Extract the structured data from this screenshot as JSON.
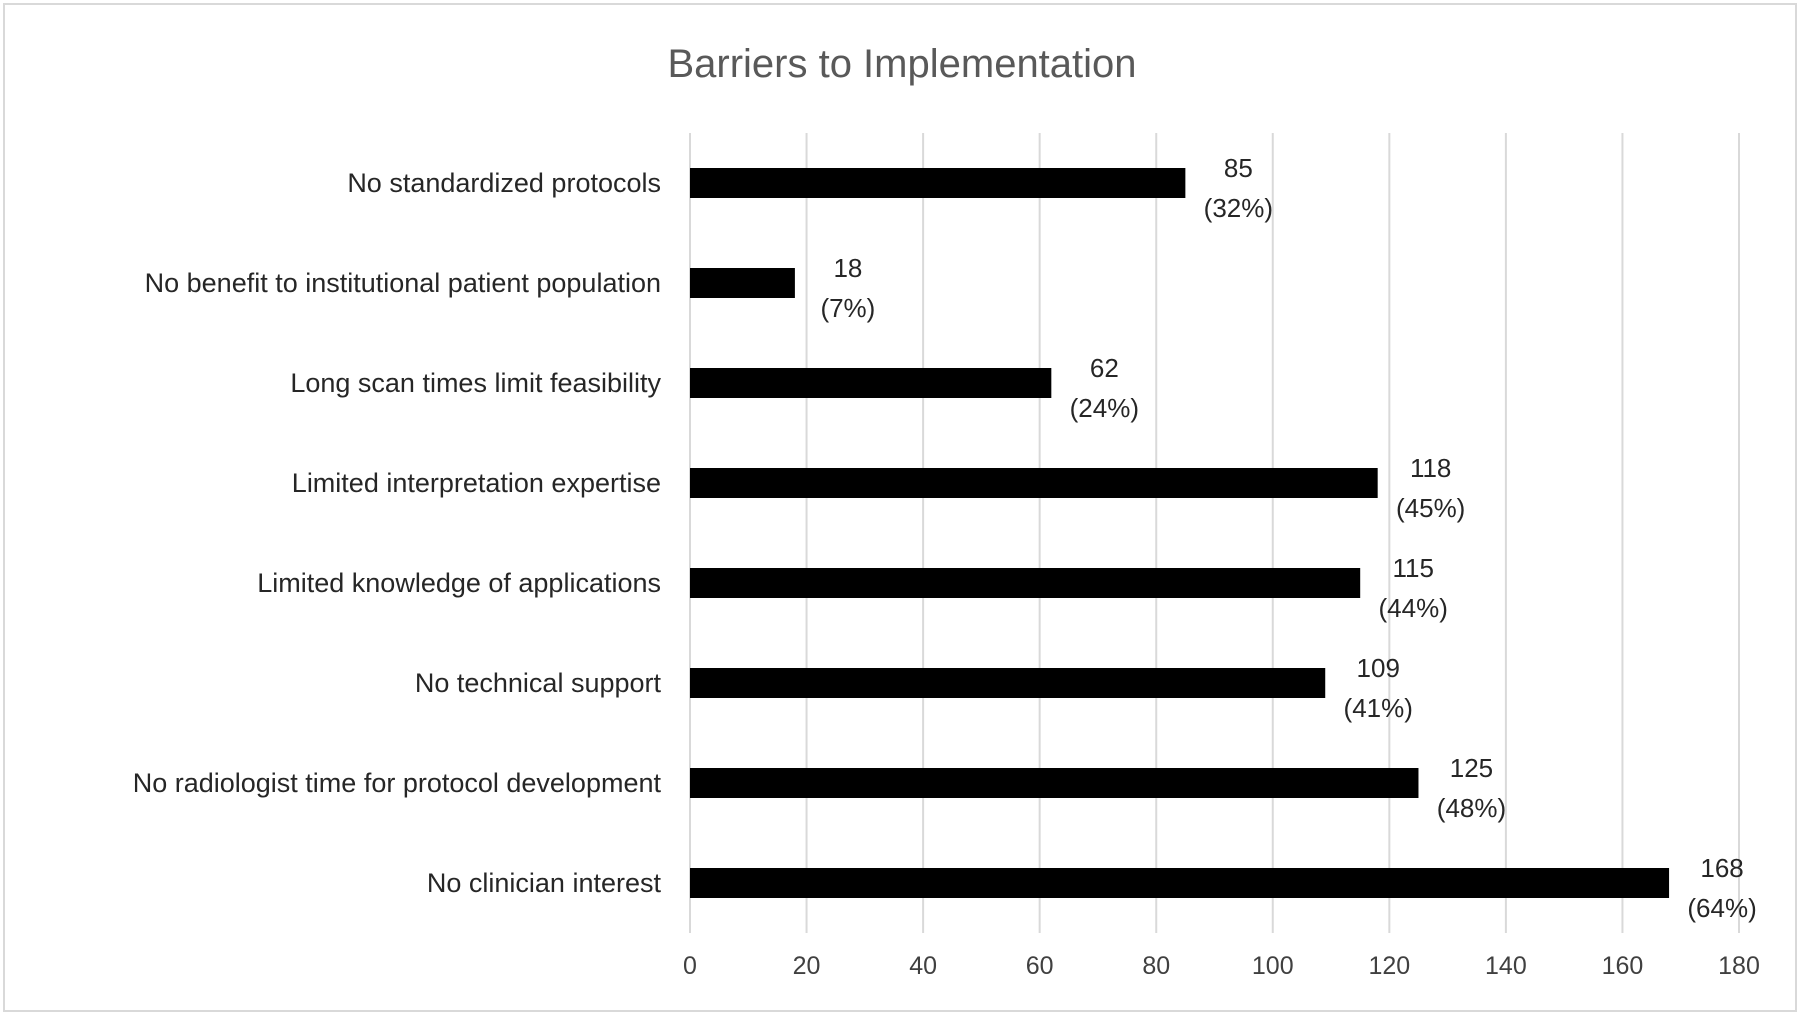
{
  "chart_data": {
    "type": "bar",
    "orientation": "horizontal",
    "title": "Barriers to Implementation",
    "xlabel": "",
    "ylabel": "",
    "categories": [
      "No standardized protocols",
      "No benefit to institutional patient population",
      "Long scan times limit feasibility",
      "Limited interpretation expertise",
      "Limited knowledge of applications",
      "No technical support",
      "No radiologist time for protocol development",
      "No clinician interest"
    ],
    "values": [
      85,
      18,
      62,
      118,
      115,
      109,
      125,
      168
    ],
    "value_labels": [
      "85",
      "18",
      "62",
      "118",
      "115",
      "109",
      "125",
      "168"
    ],
    "percent_labels": [
      "(32%)",
      "(7%)",
      "(24%)",
      "(45%)",
      "(44%)",
      "(41%)",
      "(48%)",
      "(64%)"
    ],
    "xlim": [
      0,
      180
    ],
    "xticks": [
      0,
      20,
      40,
      60,
      80,
      100,
      120,
      140,
      160,
      180
    ],
    "xtick_labels": [
      "0",
      "20",
      "40",
      "60",
      "80",
      "100",
      "120",
      "140",
      "160",
      "180"
    ],
    "grid": "vertical",
    "legend": "none",
    "bar_color": "#000000",
    "grid_color": "#d9d9d9"
  }
}
